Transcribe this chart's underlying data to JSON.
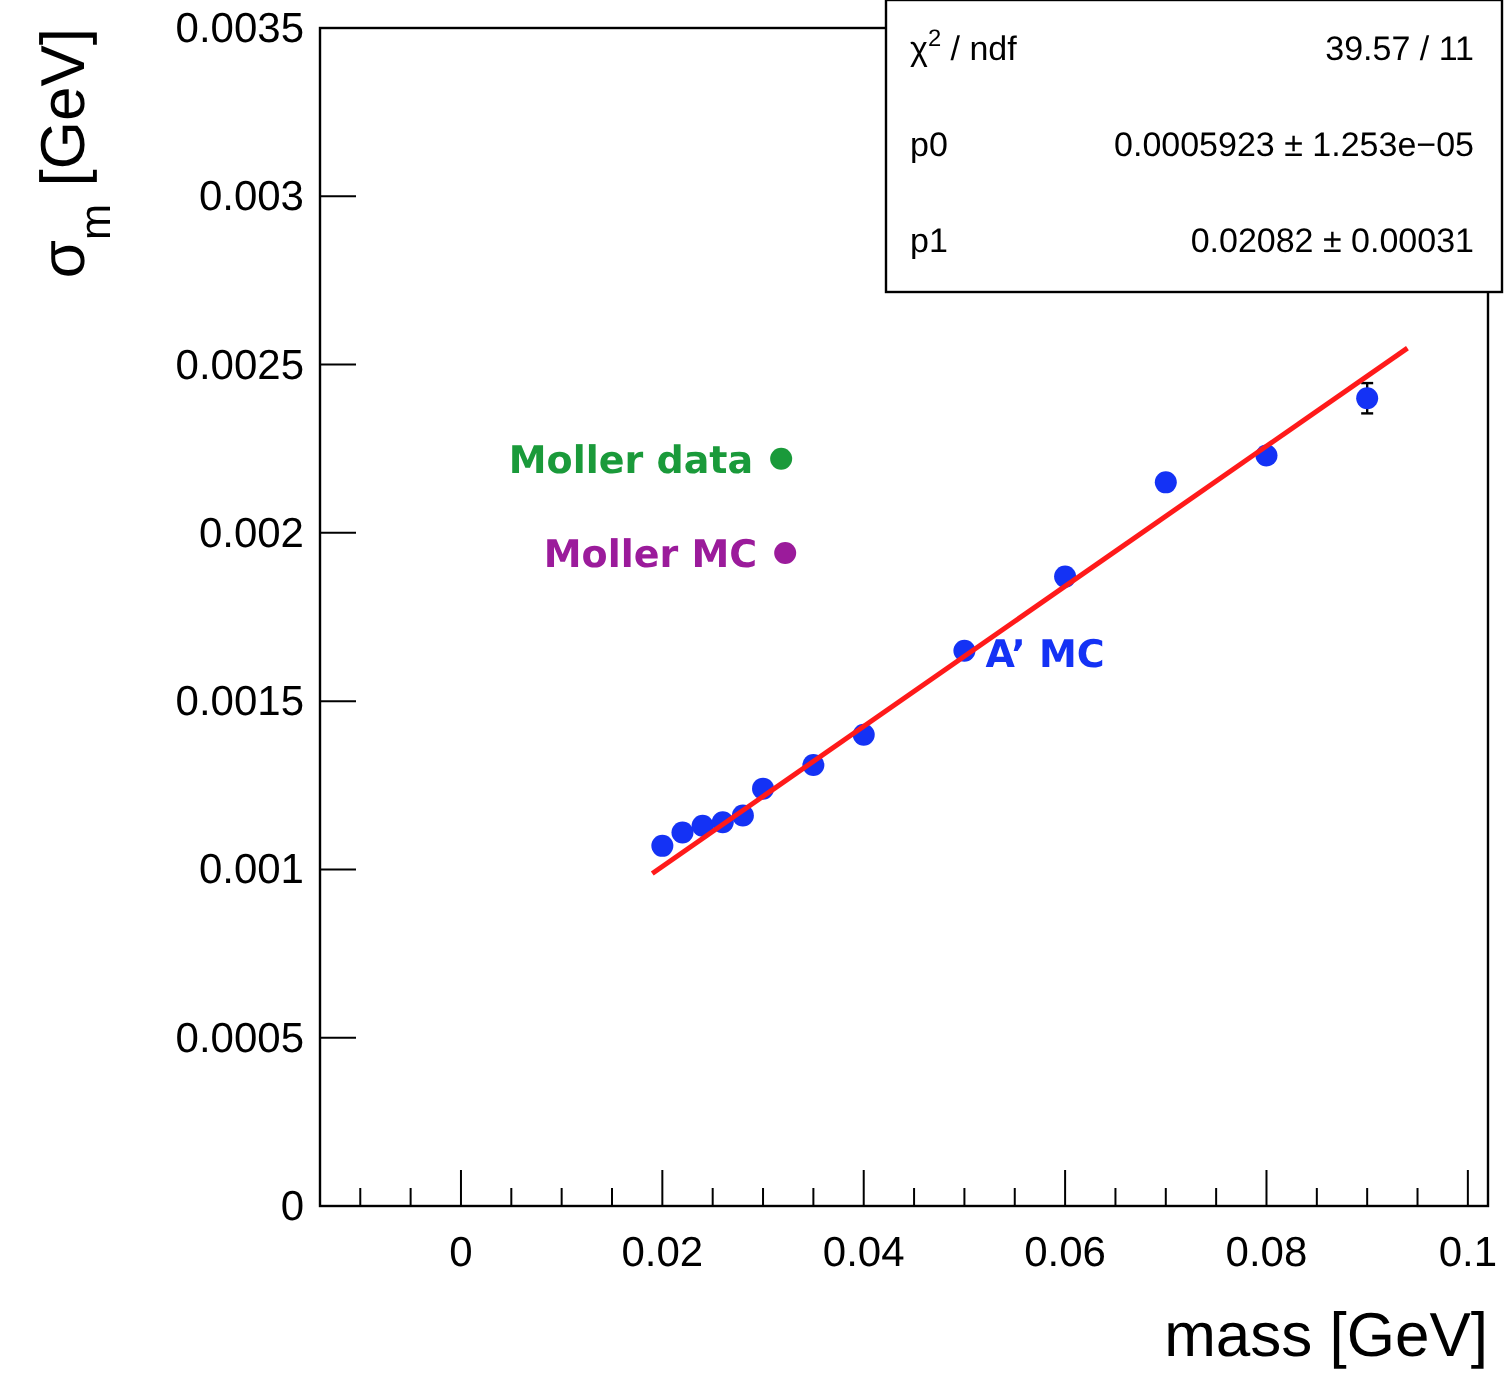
{
  "chart_data": {
    "type": "scatter",
    "xlabel": "mass [GeV]",
    "ylabel": "σ$_{m}$ [GeV]",
    "xlim": [
      -0.014,
      0.102
    ],
    "ylim": [
      0,
      0.0035
    ],
    "xticks": [
      {
        "value": -0.01,
        "label": null
      },
      {
        "value": -0.005,
        "label": null
      },
      0,
      {
        "value": 0.005,
        "label": null
      },
      {
        "value": 0.01,
        "label": null
      },
      {
        "value": 0.015,
        "label": null
      },
      0.02,
      {
        "value": 0.025,
        "label": null
      },
      {
        "value": 0.03,
        "label": null
      },
      {
        "value": 0.035,
        "label": null
      },
      0.04,
      {
        "value": 0.045,
        "label": null
      },
      {
        "value": 0.05,
        "label": null
      },
      {
        "value": 0.055,
        "label": null
      },
      0.06,
      {
        "value": 0.065,
        "label": null
      },
      {
        "value": 0.07,
        "label": null
      },
      {
        "value": 0.075,
        "label": null
      },
      0.08,
      {
        "value": 0.085,
        "label": null
      },
      {
        "value": 0.09,
        "label": null
      },
      {
        "value": 0.095,
        "label": null
      },
      0.1
    ],
    "yticks": [
      0,
      0.0005,
      0.001,
      0.0015,
      0.002,
      0.0025,
      0.003,
      0.0035
    ],
    "grid": false,
    "marker": "circle",
    "series": [
      {
        "name": "A’ MC",
        "color": "#1432f5",
        "x": [
          0.02,
          0.022,
          0.024,
          0.026,
          0.028,
          0.03,
          0.035,
          0.04,
          0.05,
          0.06,
          0.07,
          0.08,
          0.09
        ],
        "values": [
          0.00107,
          0.00111,
          0.00113,
          0.00114,
          0.00116,
          0.00124,
          0.00131,
          0.0014,
          0.00165,
          0.00187,
          0.00215,
          0.00223,
          0.0024
        ],
        "errors": [
          null,
          null,
          null,
          null,
          null,
          null,
          null,
          null,
          null,
          null,
          null,
          1e-05,
          4.5e-05
        ]
      },
      {
        "type": "line",
        "color": "#ff1a1a",
        "x": [
          0.019,
          0.094
        ],
        "values": [
          0.000988,
          0.002549
        ],
        "marker": "none",
        "line_style": "solid"
      },
      {
        "name": "Moller data",
        "color": "#1a9a3a",
        "x": [
          0.0318
        ],
        "values": [
          0.00222
        ]
      },
      {
        "name": "Moller MC",
        "color": "#9b1b9b",
        "x": [
          0.0322
        ],
        "values": [
          0.00194
        ]
      }
    ],
    "annotations": [
      "χ$^{2}$ / ndf",
      "39.57 / 11",
      "p0",
      "0.0005923 ± 1.253e−05",
      "p1",
      "0.02082 ± 0.00031"
    ]
  }
}
